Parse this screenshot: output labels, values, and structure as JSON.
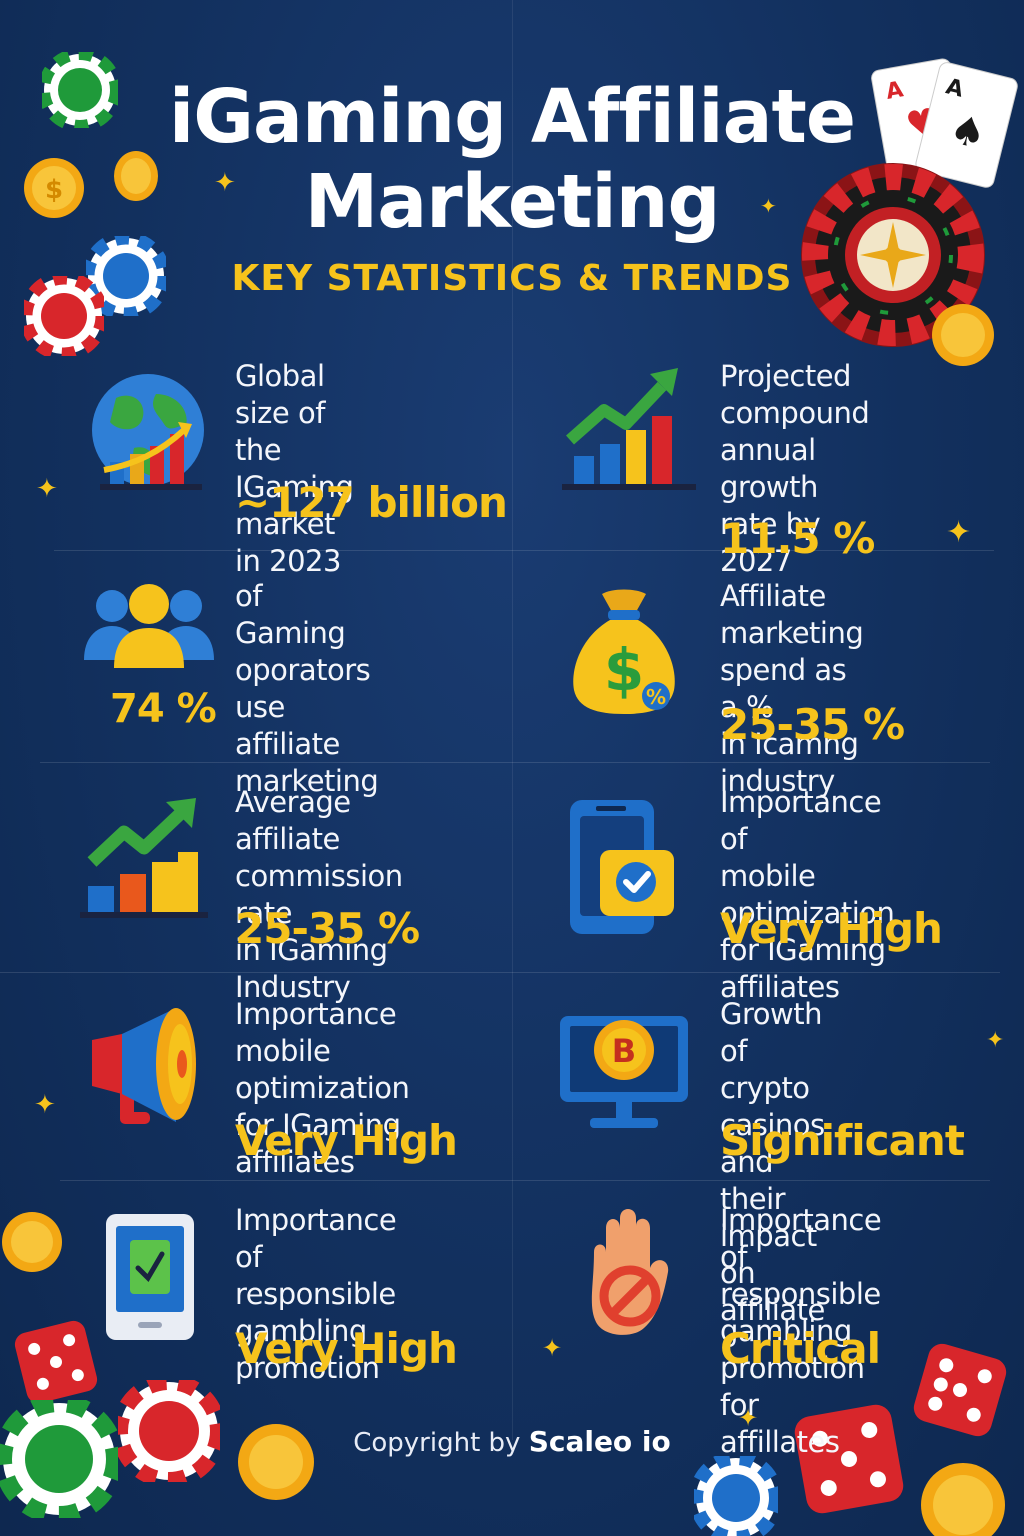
{
  "header": {
    "title_line1": "iGaming Affiliate",
    "title_line2": "Marketing",
    "subtitle": "KEY STATISTICS & TRENDS"
  },
  "stats": [
    {
      "label": "Global size of\nthe IGaming\nmarket in 2023",
      "value": "~127 billion",
      "icon": "globe-chart-icon"
    },
    {
      "label": "Projected\ncompound\nannual growth\nrate by 2027",
      "value": "11.5 %",
      "icon": "growth-chart-icon"
    },
    {
      "label": "of Gaming\noporators use\naffiliate marketing",
      "value": "74 %",
      "icon": "users-group-icon"
    },
    {
      "label": "Affiliate marketing\nspend as a %\nin Icamng industry",
      "value": "25-35 %",
      "icon": "money-bag-icon"
    },
    {
      "label": "Average affiliate\ncommission rate\nin IGaming Industry",
      "value": "25-35 %",
      "icon": "bar-chart-arrow-icon"
    },
    {
      "label": "Importance of\nmobile optimization\nfor IGaming affiliates",
      "value": "Very High",
      "icon": "mobile-check-icon"
    },
    {
      "label": "Importance\nmobile optimization\nfor IGaming affiliates",
      "value": "Very High",
      "icon": "megaphone-icon"
    },
    {
      "label": "Growth of crypto\ncasinos and their\nimpact on affiliate",
      "value": "Significant",
      "icon": "bitcoin-monitor-icon"
    },
    {
      "label": "Importance of\nresponsible\ngambling promotion",
      "value": "Very High",
      "icon": "tablet-check-icon"
    },
    {
      "label": "Importance of\nresponsible gambling\npromotion for affillates",
      "value": "Critical",
      "icon": "stop-hand-icon"
    }
  ],
  "footer": {
    "prefix": "Copyright by ",
    "brand": "Scaleo io"
  },
  "colors": {
    "background": "#12305e",
    "accent": "#f6c31c",
    "text": "#f4f6fb"
  }
}
